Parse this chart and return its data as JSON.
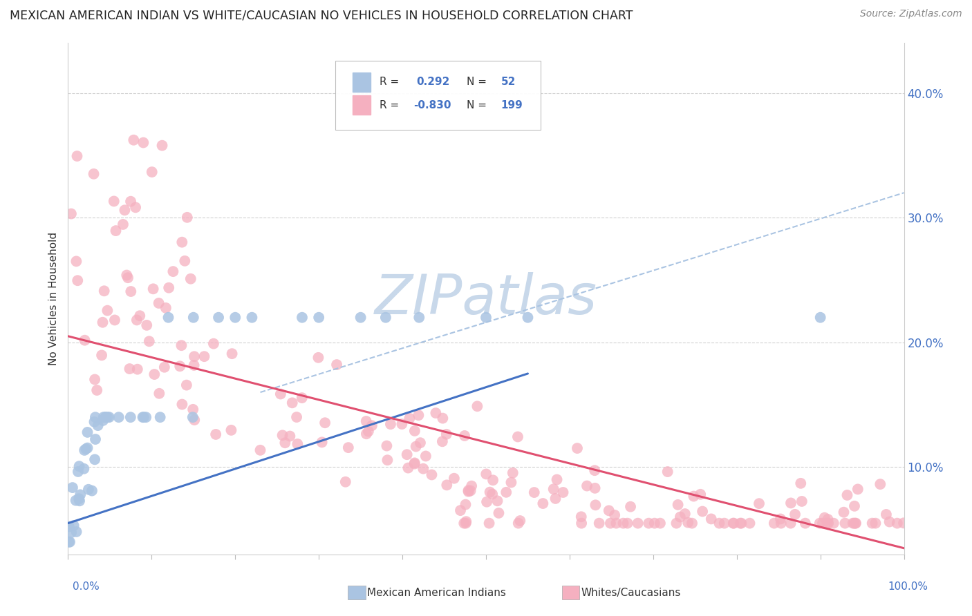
{
  "title": "MEXICAN AMERICAN INDIAN VS WHITE/CAUCASIAN NO VEHICLES IN HOUSEHOLD CORRELATION CHART",
  "source": "Source: ZipAtlas.com",
  "ylabel": "No Vehicles in Household",
  "legend_r_blue": "0.292",
  "legend_n_blue": "52",
  "legend_r_pink": "-0.830",
  "legend_n_pink": "199",
  "blue_scatter_color": "#aac4e2",
  "pink_scatter_color": "#f5b0c0",
  "blue_line_color": "#4472c4",
  "pink_line_color": "#e05070",
  "dashed_line_color": "#aac4e2",
  "grid_color": "#d0d0d0",
  "tick_color": "#4472c4",
  "ylabel_color": "#333333",
  "title_color": "#222222",
  "source_color": "#888888",
  "watermark_color": "#c8d8ea",
  "legend_border_color": "#cccccc",
  "xlim": [
    0.0,
    1.0
  ],
  "ylim": [
    0.03,
    0.44
  ],
  "ytick_vals": [
    0.1,
    0.2,
    0.3,
    0.4
  ],
  "ytick_labels": [
    "10.0%",
    "20.0%",
    "30.0%",
    "40.0%"
  ],
  "blue_line_x0": 0.0,
  "blue_line_y0": 0.055,
  "blue_line_x1": 0.55,
  "blue_line_y1": 0.175,
  "pink_line_x0": 0.0,
  "pink_line_y0": 0.205,
  "pink_line_x1": 1.0,
  "pink_line_y1": 0.035,
  "dashed_line_x0": 0.23,
  "dashed_line_y0": 0.16,
  "dashed_line_x1": 1.0,
  "dashed_line_y1": 0.32
}
